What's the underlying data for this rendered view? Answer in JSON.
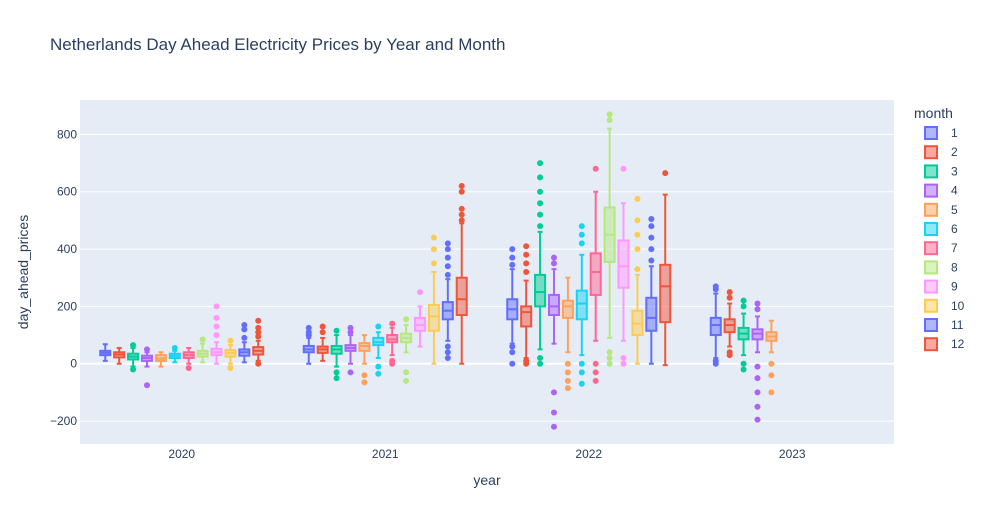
{
  "chart_data": {
    "type": "box",
    "title": "Netherlands Day Ahead Electricity Prices by Year and Month",
    "xlabel": "year",
    "ylabel": "day_ahead_prices",
    "categories": [
      "2020",
      "2021",
      "2022",
      "2023"
    ],
    "y_ticks": [
      -200,
      0,
      200,
      400,
      600,
      800
    ],
    "ylim": [
      -280,
      920
    ],
    "grid": true,
    "legend": {
      "title": "month",
      "placement": "right"
    },
    "series": [
      {
        "name": "1",
        "color": "#636efa",
        "boxes": [
          {
            "year": "2020",
            "min": 10,
            "q1": 30,
            "median": 38,
            "q3": 45,
            "max": 68,
            "outliers": []
          },
          {
            "year": "2021",
            "min": 0,
            "q1": 40,
            "median": 50,
            "q3": 62,
            "max": 90,
            "outliers": [
              100,
              110,
              125
            ]
          },
          {
            "year": "2022",
            "min": 70,
            "q1": 155,
            "median": 190,
            "q3": 225,
            "max": 330,
            "outliers": [
              0,
              40,
              60,
              345,
              370,
              400
            ]
          },
          {
            "year": "2023",
            "min": 20,
            "q1": 100,
            "median": 135,
            "q3": 160,
            "max": 245,
            "outliers": [
              0,
              10,
              260,
              270
            ]
          }
        ]
      },
      {
        "name": "2",
        "color": "#ef553b",
        "boxes": [
          {
            "year": "2020",
            "min": 0,
            "q1": 22,
            "median": 32,
            "q3": 40,
            "max": 55,
            "outliers": []
          },
          {
            "year": "2021",
            "min": 10,
            "q1": 38,
            "median": 50,
            "q3": 60,
            "max": 90,
            "outliers": [
              110,
              130
            ]
          },
          {
            "year": "2022",
            "min": 20,
            "q1": 130,
            "median": 180,
            "q3": 200,
            "max": 290,
            "outliers": [
              0,
              10,
              320,
              350,
              380,
              410
            ]
          },
          {
            "year": "2023",
            "min": 60,
            "q1": 110,
            "median": 135,
            "q3": 155,
            "max": 210,
            "outliers": [
              30,
              40,
              230,
              250
            ]
          }
        ]
      },
      {
        "name": "3",
        "color": "#00cc96",
        "boxes": [
          {
            "year": "2020",
            "min": -10,
            "q1": 15,
            "median": 25,
            "q3": 35,
            "max": 55,
            "outliers": [
              -20,
              65
            ]
          },
          {
            "year": "2021",
            "min": -10,
            "q1": 35,
            "median": 50,
            "q3": 62,
            "max": 100,
            "outliers": [
              -50,
              -30,
              115
            ]
          },
          {
            "year": "2022",
            "min": 50,
            "q1": 200,
            "median": 250,
            "q3": 310,
            "max": 460,
            "outliers": [
              0,
              20,
              480,
              520,
              560,
              600,
              650,
              700
            ]
          },
          {
            "year": "2023",
            "min": 30,
            "q1": 85,
            "median": 105,
            "q3": 125,
            "max": 175,
            "outliers": [
              -20,
              0,
              200,
              220
            ]
          }
        ]
      },
      {
        "name": "4",
        "color": "#ab63fa",
        "boxes": [
          {
            "year": "2020",
            "min": -10,
            "q1": 10,
            "median": 20,
            "q3": 28,
            "max": 40,
            "outliers": [
              -75,
              50
            ]
          },
          {
            "year": "2021",
            "min": 0,
            "q1": 45,
            "median": 55,
            "q3": 65,
            "max": 100,
            "outliers": [
              -30,
              110,
              125
            ]
          },
          {
            "year": "2022",
            "min": 70,
            "q1": 170,
            "median": 200,
            "q3": 240,
            "max": 330,
            "outliers": [
              -100,
              -170,
              -220,
              350,
              370
            ]
          },
          {
            "year": "2023",
            "min": 40,
            "q1": 85,
            "median": 105,
            "q3": 120,
            "max": 165,
            "outliers": [
              -10,
              -50,
              -100,
              -150,
              -195,
              190,
              210
            ]
          }
        ]
      },
      {
        "name": "5",
        "color": "#ffa15a",
        "boxes": [
          {
            "year": "2020",
            "min": -10,
            "q1": 10,
            "median": 18,
            "q3": 30,
            "max": 40,
            "outliers": []
          },
          {
            "year": "2021",
            "min": 0,
            "q1": 45,
            "median": 62,
            "q3": 72,
            "max": 100,
            "outliers": [
              -40,
              -65
            ]
          },
          {
            "year": "2022",
            "min": 40,
            "q1": 160,
            "median": 200,
            "q3": 220,
            "max": 300,
            "outliers": [
              0,
              -30,
              -60,
              -85
            ]
          },
          {
            "year": "2023",
            "min": 40,
            "q1": 80,
            "median": 95,
            "q3": 110,
            "max": 150,
            "outliers": [
              0,
              -40,
              -100
            ]
          }
        ]
      },
      {
        "name": "6",
        "color": "#19d3f3",
        "boxes": [
          {
            "year": "2020",
            "min": 5,
            "q1": 20,
            "median": 28,
            "q3": 35,
            "max": 45,
            "outliers": [
              55
            ]
          },
          {
            "year": "2021",
            "min": 20,
            "q1": 65,
            "median": 75,
            "q3": 90,
            "max": 110,
            "outliers": [
              -10,
              -35,
              130
            ]
          },
          {
            "year": "2022",
            "min": 30,
            "q1": 155,
            "median": 210,
            "q3": 255,
            "max": 380,
            "outliers": [
              0,
              -30,
              -70,
              420,
              450,
              480
            ]
          },
          {
            "year": "2023",
            "min": null,
            "q1": null,
            "median": null,
            "q3": null,
            "max": null,
            "outliers": []
          }
        ]
      },
      {
        "name": "7",
        "color": "#ff6692",
        "boxes": [
          {
            "year": "2020",
            "min": 0,
            "q1": 20,
            "median": 30,
            "q3": 40,
            "max": 55,
            "outliers": [
              -15
            ]
          },
          {
            "year": "2021",
            "min": 30,
            "q1": 75,
            "median": 85,
            "q3": 100,
            "max": 125,
            "outliers": [
              0,
              10,
              140
            ]
          },
          {
            "year": "2022",
            "min": 80,
            "q1": 240,
            "median": 320,
            "q3": 385,
            "max": 600,
            "outliers": [
              0,
              -30,
              -60,
              680
            ]
          },
          {
            "year": "2023",
            "min": null,
            "q1": null,
            "median": null,
            "q3": null,
            "max": null,
            "outliers": []
          }
        ]
      },
      {
        "name": "8",
        "color": "#b6e880",
        "boxes": [
          {
            "year": "2020",
            "min": 5,
            "q1": 25,
            "median": 35,
            "q3": 45,
            "max": 70,
            "outliers": [
              85
            ]
          },
          {
            "year": "2021",
            "min": 40,
            "q1": 75,
            "median": 90,
            "q3": 105,
            "max": 135,
            "outliers": [
              -30,
              -60,
              155
            ]
          },
          {
            "year": "2022",
            "min": 90,
            "q1": 355,
            "median": 450,
            "q3": 545,
            "max": 820,
            "outliers": [
              0,
              20,
              40,
              850,
              870
            ]
          },
          {
            "year": "2023",
            "min": null,
            "q1": null,
            "median": null,
            "q3": null,
            "max": null,
            "outliers": []
          }
        ]
      },
      {
        "name": "9",
        "color": "#ff97ff",
        "boxes": [
          {
            "year": "2020",
            "min": 0,
            "q1": 30,
            "median": 40,
            "q3": 52,
            "max": 75,
            "outliers": [
              100,
              130,
              160,
              200
            ]
          },
          {
            "year": "2021",
            "min": 60,
            "q1": 115,
            "median": 135,
            "q3": 160,
            "max": 200,
            "outliers": [
              250
            ]
          },
          {
            "year": "2022",
            "min": 80,
            "q1": 265,
            "median": 340,
            "q3": 430,
            "max": 560,
            "outliers": [
              0,
              20,
              680
            ]
          },
          {
            "year": "2023",
            "min": null,
            "q1": null,
            "median": null,
            "q3": null,
            "max": null,
            "outliers": []
          }
        ]
      },
      {
        "name": "10",
        "color": "#fecb52",
        "boxes": [
          {
            "year": "2020",
            "min": 0,
            "q1": 25,
            "median": 38,
            "q3": 48,
            "max": 65,
            "outliers": [
              -15,
              80
            ]
          },
          {
            "year": "2021",
            "min": 0,
            "q1": 115,
            "median": 165,
            "q3": 205,
            "max": 320,
            "outliers": [
              350,
              400,
              440
            ]
          },
          {
            "year": "2022",
            "min": 0,
            "q1": 100,
            "median": 140,
            "q3": 185,
            "max": 310,
            "outliers": [
              330,
              400,
              450,
              500,
              575
            ]
          },
          {
            "year": "2023",
            "min": null,
            "q1": null,
            "median": null,
            "q3": null,
            "max": null,
            "outliers": []
          }
        ]
      },
      {
        "name": "11",
        "color": "#636efa",
        "boxes": [
          {
            "year": "2020",
            "min": 5,
            "q1": 28,
            "median": 40,
            "q3": 50,
            "max": 75,
            "outliers": [
              90,
              120,
              135
            ]
          },
          {
            "year": "2021",
            "min": 80,
            "q1": 155,
            "median": 185,
            "q3": 215,
            "max": 295,
            "outliers": [
              20,
              40,
              60,
              310,
              340,
              370,
              400,
              420
            ]
          },
          {
            "year": "2022",
            "min": 0,
            "q1": 115,
            "median": 160,
            "q3": 230,
            "max": 340,
            "outliers": [
              360,
              400,
              440,
              480,
              505
            ]
          },
          {
            "year": "2023",
            "min": null,
            "q1": null,
            "median": null,
            "q3": null,
            "max": null,
            "outliers": []
          }
        ]
      },
      {
        "name": "12",
        "color": "#ef553b",
        "boxes": [
          {
            "year": "2020",
            "min": 10,
            "q1": 32,
            "median": 45,
            "q3": 58,
            "max": 80,
            "outliers": [
              0,
              95,
              110,
              125,
              150
            ]
          },
          {
            "year": "2021",
            "min": 0,
            "q1": 170,
            "median": 225,
            "q3": 300,
            "max": 490,
            "outliers": [
              500,
              520,
              540,
              600,
              620
            ]
          },
          {
            "year": "2022",
            "min": -5,
            "q1": 145,
            "median": 270,
            "q3": 345,
            "max": 590,
            "outliers": [
              665
            ]
          },
          {
            "year": "2023",
            "min": null,
            "q1": null,
            "median": null,
            "q3": null,
            "max": null,
            "outliers": []
          }
        ]
      }
    ]
  }
}
